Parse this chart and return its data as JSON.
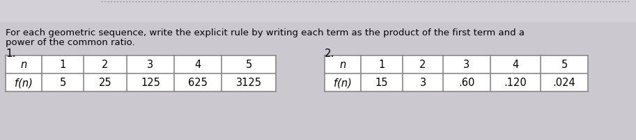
{
  "title_line1": "For each geometric sequence, write the explicit rule by writing each term as the product of the first term and a",
  "title_line2": "power of the common ratio.",
  "label1": "1.",
  "label2": "2.",
  "table1_headers": [
    "n",
    "1",
    "2",
    "3",
    "4",
    "5"
  ],
  "table1_row": [
    "f(n)",
    "5",
    "25",
    "125",
    "625",
    "3125"
  ],
  "table2_headers": [
    "n",
    "1",
    "2",
    "3",
    "4",
    "5"
  ],
  "table2_row": [
    "f(n)",
    "15",
    "3",
    ".60",
    ".120",
    ".024"
  ],
  "bg_color": "#cbc8d0",
  "table_bg": "#ffffff",
  "cell_border": "#888888",
  "text_color": "#000000",
  "title_fontsize": 9.5,
  "label_fontsize": 11,
  "table_fontsize": 10.5,
  "top_bar_color": "#d0cdd5",
  "top_border_color": "#aaaaaa"
}
